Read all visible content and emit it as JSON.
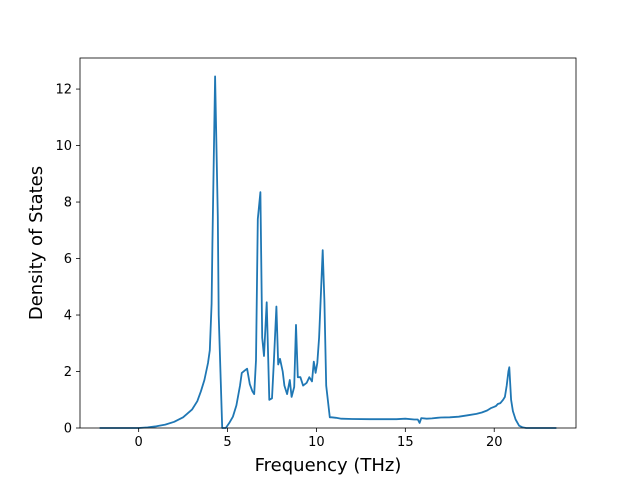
{
  "chart_data": {
    "type": "line",
    "title": "",
    "xlabel": "Frequency (THz)",
    "ylabel": "Density of States",
    "xlim": [
      -3.3,
      24.6
    ],
    "ylim": [
      0,
      13.1
    ],
    "xticks": [
      0,
      5,
      10,
      15,
      20
    ],
    "yticks": [
      0,
      2,
      4,
      6,
      8,
      10,
      12
    ],
    "grid": false,
    "legend": "none",
    "series": [
      {
        "color": "#1f77b4",
        "x": [
          -2.2,
          -1.0,
          0.0,
          0.5,
          1.0,
          1.5,
          2.0,
          2.5,
          3.0,
          3.3,
          3.5,
          3.7,
          3.9,
          4.0,
          4.1,
          4.15,
          4.3,
          4.45,
          4.5,
          4.7,
          4.9,
          5.1,
          5.3,
          5.5,
          5.7,
          5.8,
          6.0,
          6.1,
          6.25,
          6.4,
          6.5,
          6.6,
          6.7,
          6.85,
          6.95,
          7.05,
          7.2,
          7.35,
          7.5,
          7.6,
          7.75,
          7.85,
          7.95,
          8.1,
          8.2,
          8.35,
          8.5,
          8.6,
          8.75,
          8.85,
          8.95,
          9.1,
          9.25,
          9.45,
          9.6,
          9.75,
          9.85,
          9.95,
          10.05,
          10.15,
          10.35,
          10.45,
          10.55,
          10.75,
          10.85,
          11.1,
          11.4,
          12.0,
          13.0,
          14.0,
          14.5,
          15.0,
          15.5,
          15.7,
          15.8,
          15.9,
          16.2,
          16.5,
          16.8,
          17.0,
          17.5,
          18.0,
          18.5,
          19.0,
          19.3,
          19.6,
          19.8,
          20.0,
          20.1,
          20.2,
          20.35,
          20.5,
          20.6,
          20.7,
          20.8,
          20.85,
          20.95,
          21.05,
          21.2,
          21.4,
          21.6,
          21.8,
          22.5,
          23.5
        ],
        "y": [
          0,
          0,
          0,
          0.02,
          0.06,
          0.12,
          0.22,
          0.38,
          0.65,
          0.95,
          1.3,
          1.7,
          2.3,
          2.75,
          4.4,
          6.5,
          12.45,
          7.5,
          4.0,
          0.0,
          0.0,
          0.18,
          0.4,
          0.8,
          1.5,
          1.95,
          2.05,
          2.1,
          1.55,
          1.3,
          1.2,
          2.4,
          7.4,
          8.35,
          3.2,
          2.55,
          4.45,
          1.0,
          1.05,
          2.3,
          4.3,
          2.25,
          2.45,
          2.0,
          1.5,
          1.2,
          1.7,
          1.1,
          1.45,
          3.65,
          1.8,
          1.8,
          1.5,
          1.6,
          1.8,
          1.65,
          2.35,
          1.95,
          2.3,
          3.2,
          6.3,
          4.5,
          1.5,
          0.38,
          0.38,
          0.36,
          0.33,
          0.32,
          0.31,
          0.31,
          0.31,
          0.33,
          0.3,
          0.3,
          0.18,
          0.35,
          0.33,
          0.34,
          0.36,
          0.37,
          0.38,
          0.4,
          0.45,
          0.5,
          0.55,
          0.62,
          0.7,
          0.75,
          0.78,
          0.85,
          0.88,
          1.0,
          1.1,
          1.5,
          2.0,
          2.15,
          1.0,
          0.6,
          0.3,
          0.08,
          0.02,
          0,
          0,
          0
        ]
      }
    ]
  }
}
